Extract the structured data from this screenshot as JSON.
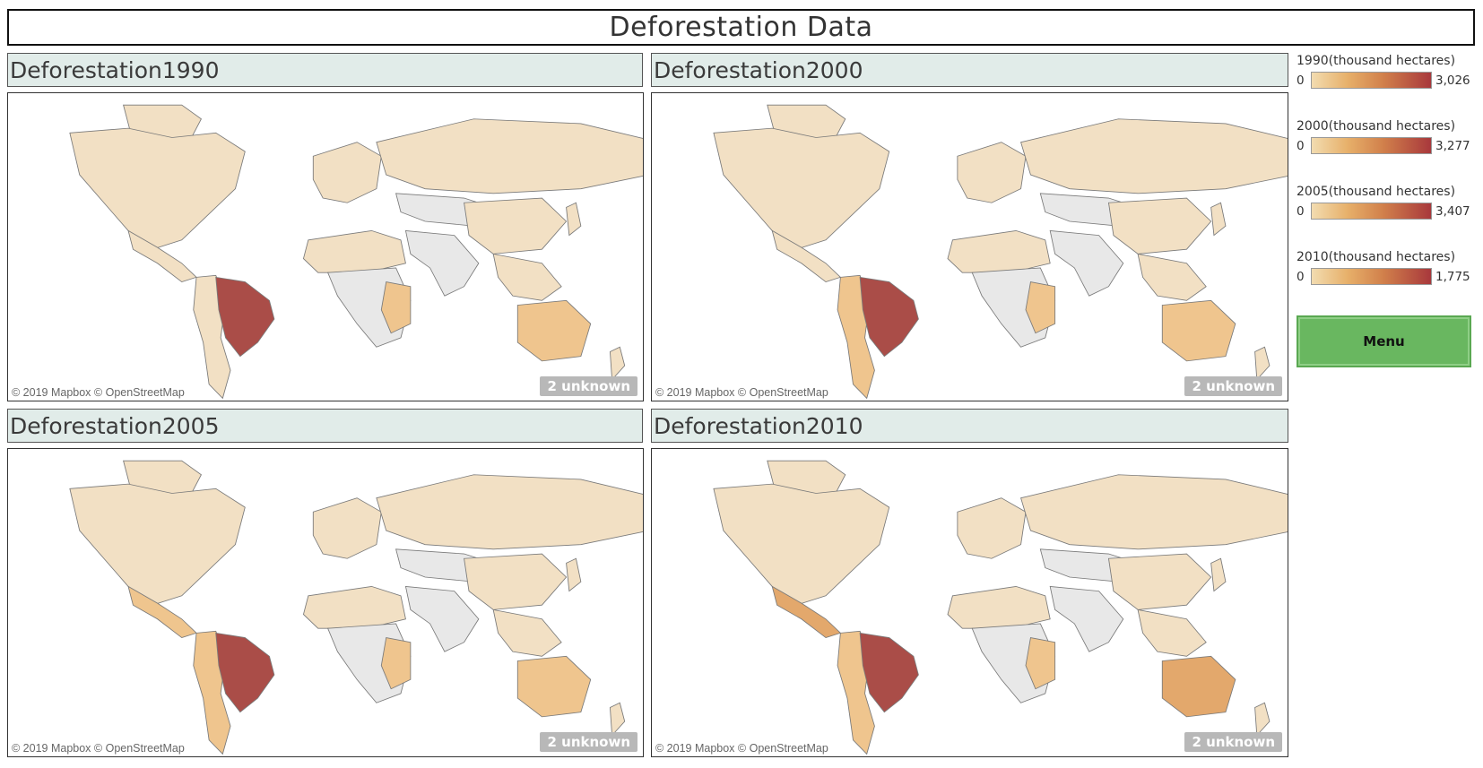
{
  "dashboard": {
    "title": "Deforestation Data"
  },
  "panels": [
    {
      "title": "Deforestation1990",
      "attribution": "© 2019 Mapbox © OpenStreetMap",
      "unknown": "2 unknown",
      "year": "1990"
    },
    {
      "title": "Deforestation2000",
      "attribution": "© 2019 Mapbox © OpenStreetMap",
      "unknown": "2 unknown",
      "year": "2000"
    },
    {
      "title": "Deforestation2005",
      "attribution": "© 2019 Mapbox © OpenStreetMap",
      "unknown": "2 unknown",
      "year": "2005"
    },
    {
      "title": "Deforestation2010",
      "attribution": "© 2019 Mapbox © OpenStreetMap",
      "unknown": "2 unknown",
      "year": "2010"
    }
  ],
  "legends": [
    {
      "title": "1990(thousand hectares)",
      "min": "0",
      "max": "3,026"
    },
    {
      "title": "2000(thousand hectares)",
      "min": "0",
      "max": "3,277"
    },
    {
      "title": "2005(thousand hectares)",
      "min": "0",
      "max": "3,407"
    },
    {
      "title": "2010(thousand hectares)",
      "min": "0",
      "max": "1,775"
    }
  ],
  "menu": {
    "label": "Menu"
  },
  "colors": {
    "land_low": "#f2e0c4",
    "land_mid": "#efc58e",
    "land_high": "#e3a86c",
    "brazil": "#aa4d48",
    "no_data": "#e8e8e8",
    "header_bg": "#e1ece9",
    "menu_green": "#69b760"
  }
}
